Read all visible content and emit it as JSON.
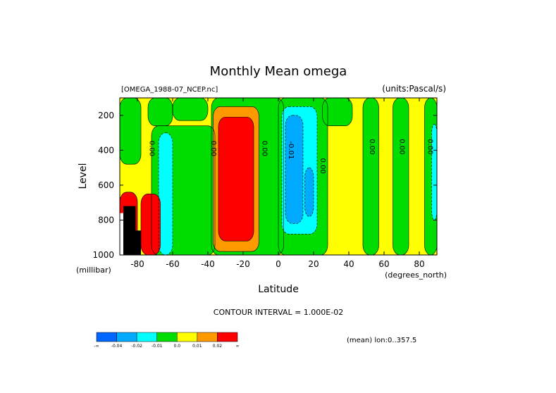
{
  "chart_data": {
    "type": "heatmap",
    "title": "Monthly Mean omega",
    "subtitle_left": "[OMEGA_1988-07_NCEP.nc]",
    "subtitle_right": "(units:Pascal/s)",
    "xlabel": "Latitude",
    "x_unit": "(degrees_north)",
    "ylabel": "Level",
    "y_unit": "(millibar)",
    "x_range": [
      -90,
      90
    ],
    "y_range": [
      100,
      1000
    ],
    "y_inverted": true,
    "x_ticks": [
      -80,
      -60,
      -40,
      -20,
      0,
      20,
      40,
      60,
      80
    ],
    "y_ticks": [
      200,
      400,
      600,
      800,
      1000
    ],
    "x_tick_labels": [
      "-80",
      "-60",
      "-40",
      "-20",
      "0",
      "20",
      "40",
      "60",
      "80"
    ],
    "y_tick_labels": [
      "200",
      "400",
      "600",
      "800",
      "1000"
    ],
    "contour_interval_text": "CONTOUR INTERVAL = 1.000E-02",
    "mean_text": "(mean) lon:0..357.5",
    "contour_labels": [
      {
        "text": "0.00",
        "x": -73,
        "y": 390
      },
      {
        "text": "0.00",
        "x": -38,
        "y": 390
      },
      {
        "text": "0.00",
        "x": -9,
        "y": 390
      },
      {
        "text": "-0.01",
        "x": 6,
        "y": 400
      },
      {
        "text": "0.00",
        "x": 24,
        "y": 490
      },
      {
        "text": "0.00",
        "x": 52,
        "y": 380
      },
      {
        "text": "0.00",
        "x": 69,
        "y": 380
      },
      {
        "text": "0.00",
        "x": 85,
        "y": 380
      }
    ],
    "colorbar": {
      "colors": [
        "#0066ff",
        "#00aaff",
        "#00ffff",
        "#00dd00",
        "#ffff00",
        "#ff9900",
        "#ff0000"
      ],
      "labels": [
        "-∞",
        "-0.04",
        "-0.02",
        "-0.01",
        "0.0",
        "0.01",
        "0.02",
        "∞"
      ]
    },
    "fields": {
      "background": "#ffff00",
      "regions": [
        {
          "level": "green",
          "color": "#00dd00",
          "lat": [
            -90,
            -78
          ],
          "lev": [
            100,
            480
          ]
        },
        {
          "level": "green",
          "color": "#00dd00",
          "lat": [
            -74,
            -60
          ],
          "lev": [
            100,
            260
          ]
        },
        {
          "level": "green",
          "color": "#00dd00",
          "lat": [
            -60,
            -40
          ],
          "lev": [
            100,
            230
          ]
        },
        {
          "level": "green",
          "color": "#00dd00",
          "lat": [
            -72,
            -36
          ],
          "lev": [
            260,
            1000
          ]
        },
        {
          "level": "green",
          "color": "#00dd00",
          "lat": [
            -38,
            3
          ],
          "lev": [
            100,
            1000
          ]
        },
        {
          "level": "green",
          "color": "#00dd00",
          "lat": [
            0,
            28
          ],
          "lev": [
            100,
            1000
          ]
        },
        {
          "level": "green",
          "color": "#00dd00",
          "lat": [
            25,
            42
          ],
          "lev": [
            100,
            260
          ]
        },
        {
          "level": "green",
          "color": "#00dd00",
          "lat": [
            48,
            57
          ],
          "lev": [
            100,
            1000
          ]
        },
        {
          "level": "green",
          "color": "#00dd00",
          "lat": [
            65,
            74
          ],
          "lev": [
            100,
            1000
          ]
        },
        {
          "level": "green",
          "color": "#00dd00",
          "lat": [
            83,
            90
          ],
          "lev": [
            100,
            1000
          ]
        },
        {
          "level": "cyan",
          "color": "#00ffff",
          "lat": [
            -68,
            -60
          ],
          "lev": [
            300,
            1000
          ]
        },
        {
          "level": "cyan",
          "color": "#00ffff",
          "lat": [
            2,
            22
          ],
          "lev": [
            150,
            880
          ]
        },
        {
          "level": "cyan",
          "color": "#00ffff",
          "lat": [
            87,
            90
          ],
          "lev": [
            250,
            800
          ]
        },
        {
          "level": "lightblue",
          "color": "#00aaff",
          "lat": [
            4,
            14
          ],
          "lev": [
            200,
            820
          ]
        },
        {
          "level": "lightblue",
          "color": "#00aaff",
          "lat": [
            15,
            20
          ],
          "lev": [
            500,
            780
          ]
        },
        {
          "level": "orange",
          "color": "#ff9900",
          "lat": [
            -37,
            -11
          ],
          "lev": [
            150,
            980
          ]
        },
        {
          "level": "red",
          "color": "#ff0000",
          "lat": [
            -34,
            -14
          ],
          "lev": [
            210,
            920
          ]
        },
        {
          "level": "red",
          "color": "#ff0000",
          "lat": [
            -90,
            -80
          ],
          "lev": [
            640,
            1000
          ]
        },
        {
          "level": "red",
          "color": "#ff0000",
          "lat": [
            -78,
            -67
          ],
          "lev": [
            650,
            1000
          ]
        }
      ],
      "missing_color": "#000000",
      "missing_cells": [
        {
          "lat": [
            -88,
            -81
          ],
          "lev": [
            720,
            1000
          ]
        },
        {
          "lat": [
            -81,
            -78
          ],
          "lev": [
            860,
            1000
          ]
        }
      ],
      "white_cells": [
        {
          "lat": [
            -90,
            -88
          ],
          "lev": [
            760,
            1000
          ]
        }
      ]
    }
  }
}
